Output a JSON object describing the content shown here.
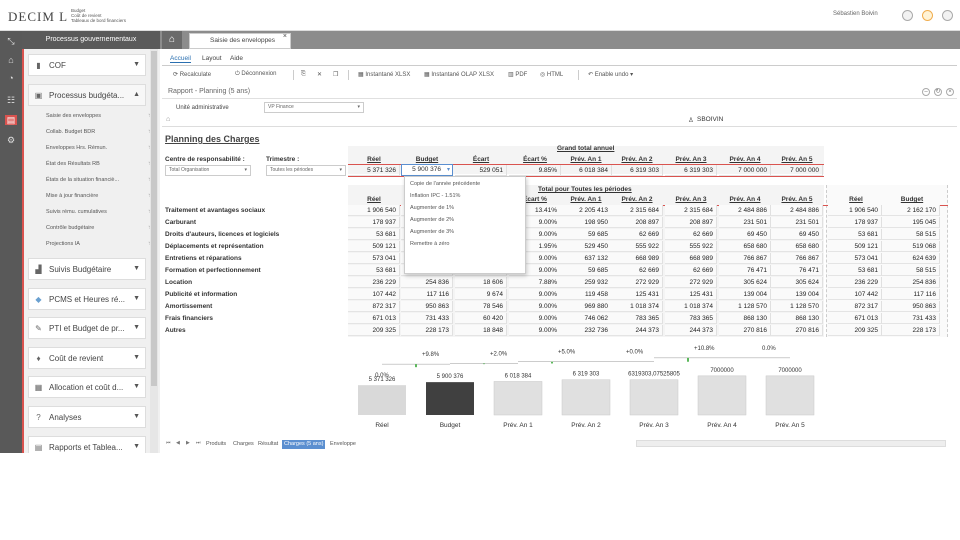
{
  "app": {
    "logo": "DECIM L",
    "logo_sub": [
      "Budget",
      "Coût de revient",
      "Tableaux de bord financiers"
    ],
    "user": "Sébastien Boivin"
  },
  "sidebar": {
    "header": "Processus gouvernementaux",
    "sections": [
      {
        "label": "COF",
        "icon": "book-icon"
      },
      {
        "label": "Processus budgéta...",
        "icon": "folder-icon"
      },
      {
        "label": "Suivis Budgétaire",
        "icon": "chart-icon"
      },
      {
        "label": "PCMS et Heures ré...",
        "icon": "diamond-icon"
      },
      {
        "label": "PTI et Budget de pr...",
        "icon": "wrench-icon"
      },
      {
        "label": "Coût de revient",
        "icon": "cart-icon"
      },
      {
        "label": "Allocation et coût d...",
        "icon": "calc-icon"
      },
      {
        "label": "Analyses",
        "icon": "question-icon"
      },
      {
        "label": "Rapports et Tablea...",
        "icon": "reports-icon"
      }
    ],
    "subitems": [
      "Saisie des enveloppes",
      "Collab. Budget BDR",
      "Enveloppes Hrs. Rémun.",
      "État des Résultats RB",
      "États de la situation financiè...",
      "Mise à jour financière",
      "Suivis rému. cumulatives",
      "Contrôle budgétaire",
      "Projections IA"
    ]
  },
  "tab": {
    "label": "Saisie des enveloppes"
  },
  "menu": {
    "items": [
      "Accueil",
      "Layout",
      "Aide"
    ]
  },
  "toolbar": {
    "recalculate": "Recalculate",
    "disconnect": "Déconnexion",
    "xlsx": "Instantané XLSX",
    "olap": "Instantané OLAP XLSX",
    "pdf": "PDF",
    "html": "HTML",
    "undo": "Enable undo"
  },
  "report": {
    "title": "Rapport - Planning (5 ans)",
    "ua_label": "Unité administrative",
    "ua_value": "VP Finance",
    "user_code": "SBOIVIN",
    "planning_title": "Planning des Charges"
  },
  "filters": {
    "resp_label": "Centre de responsabilité :",
    "resp_value": "Total Organisation",
    "tri_label": "Trimestre :",
    "tri_value": "Toutes les périodes"
  },
  "grand_total": {
    "title": "Grand total annuel",
    "headers": [
      "Réel",
      "Budget",
      "Écart",
      "Écart %",
      "Prév. An 1",
      "Prév. An 2",
      "Prév. An 3",
      "Prév. An 4",
      "Prév. An 5"
    ],
    "values": [
      "5 371 326",
      "5 900 376",
      "529 051",
      "9.85%",
      "6 018 384",
      "6 319 303",
      "6 319 303",
      "7 000 000",
      "7 000 000"
    ]
  },
  "dropdown": {
    "items": [
      "Copie de l'année précédente",
      "Inflation IPC - 1.51%",
      "Augmenter de 1%",
      "Augmenter de 2%",
      "Augmenter de 3%",
      "Remettre à zéro"
    ]
  },
  "detail": {
    "title": "Total pour Toutes les périodes",
    "headers": [
      "Réel",
      "Budget",
      "Écart",
      "Écart %",
      "Prév. An 1",
      "Prév. An 2",
      "Prév. An 3",
      "Prév. An 4",
      "Prév. An 5"
    ],
    "right_headers": [
      "Réel",
      "Budget"
    ],
    "rows": [
      {
        "label": "Traitement et avantages sociaux",
        "v": [
          "1 906 540",
          "",
          "",
          "13.41%",
          "2 205 413",
          "2 315 684",
          "2 315 684",
          "2 484 886",
          "2 484 886"
        ],
        "r": [
          "1 906 540",
          "2 162 170"
        ]
      },
      {
        "label": "Carburant",
        "v": [
          "178 937",
          "",
          "",
          "9.00%",
          "198 950",
          "208 897",
          "208 897",
          "231 501",
          "231 501"
        ],
        "r": [
          "178 937",
          "195 045"
        ]
      },
      {
        "label": "Droits d'auteurs, licences et logiciels",
        "v": [
          "53 681",
          "",
          "",
          "9.00%",
          "59 685",
          "62 669",
          "62 669",
          "69 450",
          "69 450"
        ],
        "r": [
          "53 681",
          "58 515"
        ]
      },
      {
        "label": "Déplacements et représentation",
        "v": [
          "509 121",
          "",
          "",
          "1.95%",
          "529 450",
          "555 922",
          "555 922",
          "658 680",
          "658 680"
        ],
        "r": [
          "509 121",
          "519 068"
        ]
      },
      {
        "label": "Entretiens et réparations",
        "v": [
          "573 041",
          "",
          "",
          "9.00%",
          "637 132",
          "668 989",
          "668 989",
          "766 867",
          "766 867"
        ],
        "r": [
          "573 041",
          "624 639"
        ]
      },
      {
        "label": "Formation et perfectionnement",
        "v": [
          "53 681",
          "",
          "",
          "9.00%",
          "59 685",
          "62 669",
          "62 669",
          "76 471",
          "76 471"
        ],
        "r": [
          "53 681",
          "58 515"
        ]
      },
      {
        "label": "Location",
        "v": [
          "236 229",
          "254 836",
          "18 606",
          "7.88%",
          "259 932",
          "272 929",
          "272 929",
          "305 624",
          "305 624"
        ],
        "r": [
          "236 229",
          "254 836"
        ]
      },
      {
        "label": "Publicité et information",
        "v": [
          "107 442",
          "117 116",
          "9 674",
          "9.00%",
          "119 458",
          "125 431",
          "125 431",
          "139 004",
          "139 004"
        ],
        "r": [
          "107 442",
          "117 116"
        ]
      },
      {
        "label": "Amortissement",
        "v": [
          "872 317",
          "950 863",
          "78 546",
          "9.00%",
          "969 880",
          "1 018 374",
          "1 018 374",
          "1 128 570",
          "1 128 570"
        ],
        "r": [
          "872 317",
          "950 863"
        ]
      },
      {
        "label": "Frais financiers",
        "v": [
          "671 013",
          "731 433",
          "60 420",
          "9.00%",
          "746 062",
          "783 365",
          "783 365",
          "868 130",
          "868 130"
        ],
        "r": [
          "671 013",
          "731 433"
        ]
      },
      {
        "label": "Autres",
        "v": [
          "209 325",
          "228 173",
          "18 848",
          "9.00%",
          "232 736",
          "244 373",
          "244 373",
          "270 816",
          "270 816"
        ],
        "r": [
          "209 325",
          "228 173"
        ]
      }
    ]
  },
  "chart_data": {
    "type": "bar",
    "categories": [
      "Réel",
      "Budget",
      "Prév. An 1",
      "Prév. An 2",
      "Prév. An 3",
      "Prév. An 4",
      "Prév. An 5"
    ],
    "values": [
      5371326,
      5900376,
      6018384,
      6319303,
      6319303.07525805,
      7000000,
      7000000
    ],
    "value_labels": [
      "5 371 326",
      "5 900 376",
      "6 018 384",
      "6 319 303",
      "6319303,07525805",
      "7000000",
      "7000000"
    ],
    "pct_labels": [
      "0.0%",
      "+9.8%",
      "+2.0%",
      "+5.0%",
      "+0.0%",
      "+10.8%",
      "0.0%"
    ],
    "colors": {
      "reel": "#d9d9d9",
      "budget": "#404040",
      "forecast": "#e0e0e0",
      "step": "#5cb85c"
    }
  },
  "sheets": {
    "tabs": [
      "Produits",
      "Charges",
      "Résultat",
      "Charges (5 ans)",
      "Enveloppe"
    ],
    "active": "Charges (5 ans)"
  }
}
